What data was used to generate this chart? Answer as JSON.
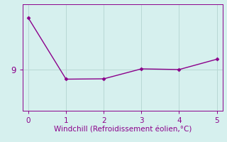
{
  "x": [
    0,
    1,
    2,
    3,
    4,
    5
  ],
  "y": [
    10.5,
    8.72,
    8.73,
    9.02,
    9.0,
    9.3
  ],
  "line_color": "#8B008B",
  "marker": "D",
  "marker_size": 2.5,
  "background_color": "#d6f0ee",
  "grid_color": "#b8d8d4",
  "axis_color": "#8B008B",
  "tick_color": "#8B008B",
  "xlabel": "Windchill (Refroidissement éolien,°C)",
  "xlabel_color": "#8B008B",
  "ylabel_ticks": [
    9
  ],
  "xlim": [
    -0.15,
    5.15
  ],
  "ylim": [
    7.8,
    10.9
  ],
  "xticks": [
    0,
    1,
    2,
    3,
    4,
    5
  ],
  "xlabel_fontsize": 7.5,
  "tick_fontsize": 7.5,
  "ytick_fontsize": 8.5,
  "linewidth": 1.0
}
